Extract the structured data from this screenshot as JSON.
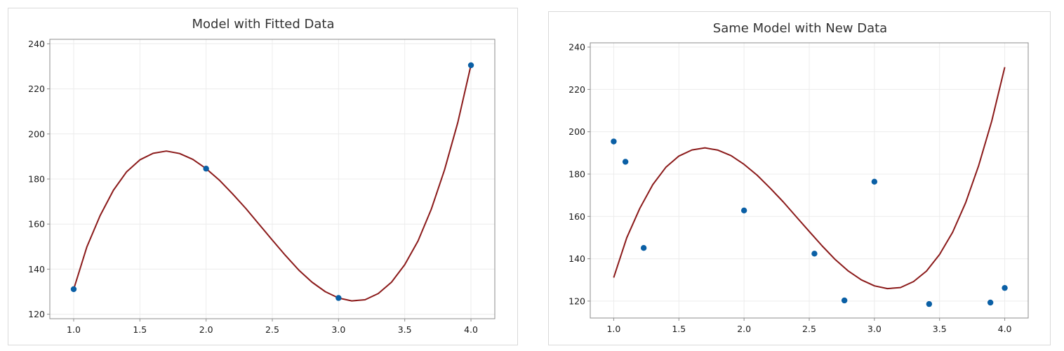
{
  "chart_data": [
    {
      "type": "scatter",
      "title": "Model with Fitted Data",
      "xlabel": "",
      "ylabel": "",
      "xlim": [
        0.82,
        4.18
      ],
      "ylim": [
        118,
        242
      ],
      "x_ticks": [
        1.0,
        1.5,
        2.0,
        2.5,
        3.0,
        3.5,
        4.0
      ],
      "x_tick_labels": [
        "1.0",
        "1.5",
        "2.0",
        "2.5",
        "3.0",
        "3.5",
        "4.0"
      ],
      "y_ticks": [
        120,
        140,
        160,
        180,
        200,
        220,
        240
      ],
      "y_tick_labels": [
        "120",
        "140",
        "160",
        "180",
        "200",
        "220",
        "240"
      ],
      "grid": true,
      "points": {
        "x": [
          1.0,
          2.0,
          3.0,
          4.0
        ],
        "y": [
          131.1,
          184.6,
          127.2,
          230.5
        ]
      },
      "curve": {
        "x": [
          1.0,
          1.1,
          1.2,
          1.3,
          1.4,
          1.5,
          1.6,
          1.7,
          1.8,
          1.9,
          2.0,
          2.1,
          2.2,
          2.3,
          2.4,
          2.5,
          2.6,
          2.7,
          2.8,
          2.9,
          3.0,
          3.1,
          3.2,
          3.3,
          3.4,
          3.5,
          3.6,
          3.7,
          3.8,
          3.9,
          4.0
        ],
        "y": [
          131.1,
          149.9,
          163.8,
          175.0,
          183.2,
          188.5,
          191.4,
          192.4,
          191.3,
          188.7,
          184.6,
          179.5,
          173.4,
          166.9,
          159.9,
          152.9,
          146.0,
          139.6,
          134.2,
          130.0,
          127.2,
          125.9,
          126.4,
          129.2,
          134.2,
          142.0,
          152.5,
          166.5,
          184.0,
          205.0,
          230.5
        ]
      },
      "colors": {
        "points": "#0a5fa5",
        "curve": "#8b1a1a"
      }
    },
    {
      "type": "scatter",
      "title": "Same Model with New Data",
      "xlabel": "",
      "ylabel": "",
      "xlim": [
        0.82,
        4.18
      ],
      "ylim": [
        112,
        242
      ],
      "x_ticks": [
        1.0,
        1.5,
        2.0,
        2.5,
        3.0,
        3.5,
        4.0
      ],
      "x_tick_labels": [
        "1.0",
        "1.5",
        "2.0",
        "2.5",
        "3.0",
        "3.5",
        "4.0"
      ],
      "y_ticks": [
        120,
        140,
        160,
        180,
        200,
        220,
        240
      ],
      "y_tick_labels": [
        "120",
        "140",
        "160",
        "180",
        "200",
        "220",
        "240"
      ],
      "grid": true,
      "points": {
        "x": [
          1.0,
          1.09,
          1.23,
          2.0,
          2.54,
          2.77,
          3.0,
          3.42,
          3.89,
          4.0
        ],
        "y": [
          195.4,
          185.8,
          145.1,
          162.8,
          142.4,
          120.3,
          176.4,
          118.6,
          119.3,
          126.2
        ]
      },
      "curve": {
        "x": [
          1.0,
          1.1,
          1.2,
          1.3,
          1.4,
          1.5,
          1.6,
          1.7,
          1.8,
          1.9,
          2.0,
          2.1,
          2.2,
          2.3,
          2.4,
          2.5,
          2.6,
          2.7,
          2.8,
          2.9,
          3.0,
          3.1,
          3.2,
          3.3,
          3.4,
          3.5,
          3.6,
          3.7,
          3.8,
          3.9,
          4.0
        ],
        "y": [
          131.1,
          149.9,
          163.8,
          175.0,
          183.2,
          188.5,
          191.4,
          192.4,
          191.3,
          188.7,
          184.6,
          179.5,
          173.4,
          166.9,
          159.9,
          152.9,
          146.0,
          139.6,
          134.2,
          130.0,
          127.2,
          125.9,
          126.4,
          129.2,
          134.2,
          142.0,
          152.5,
          166.5,
          184.0,
          205.0,
          230.5
        ]
      },
      "colors": {
        "points": "#0a5fa5",
        "curve": "#8b1a1a"
      }
    }
  ]
}
